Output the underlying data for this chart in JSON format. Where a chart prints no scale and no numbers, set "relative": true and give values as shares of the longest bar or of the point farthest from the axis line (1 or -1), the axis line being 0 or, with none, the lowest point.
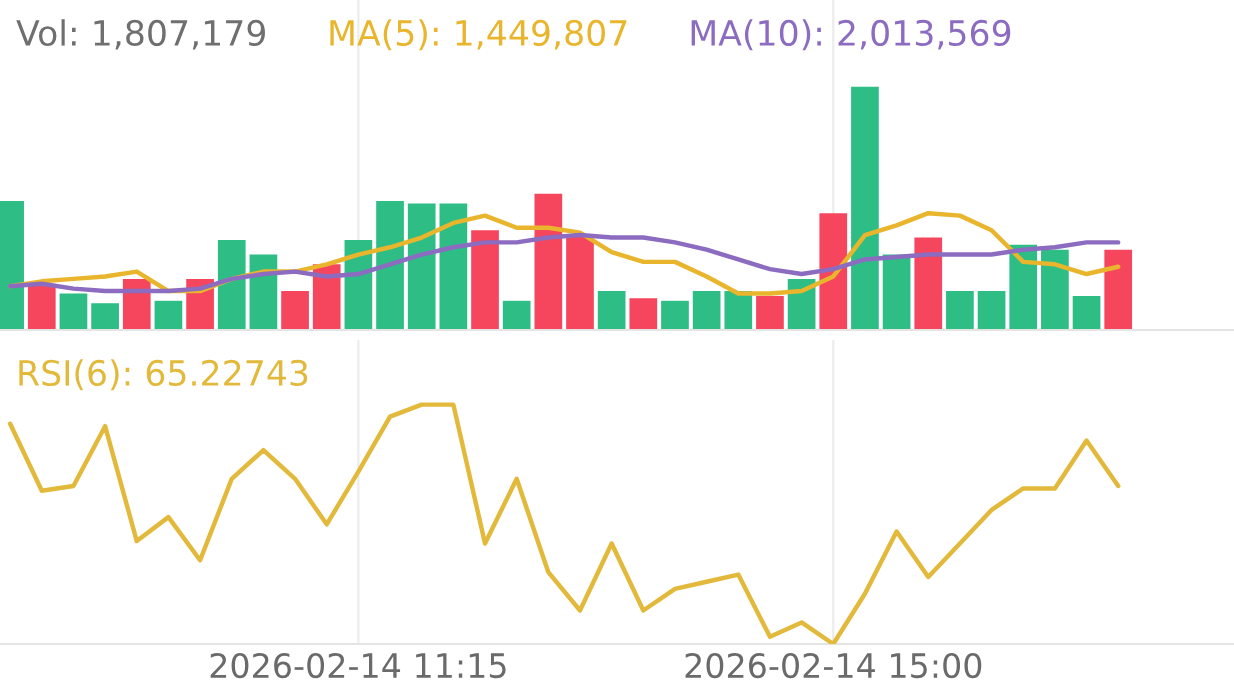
{
  "chart_data": [
    {
      "type": "bar",
      "title": "Vol: 1,807,179",
      "relative": true,
      "grid": "x",
      "legend": false,
      "tick_labels": false,
      "categories": [
        null,
        null,
        null,
        null,
        null,
        null,
        null,
        null,
        null,
        null,
        null,
        "2026-02-14 11:15",
        null,
        null,
        null,
        null,
        null,
        null,
        null,
        null,
        null,
        null,
        null,
        null,
        null,
        null,
        "2026-02-14 15:00",
        null,
        null,
        null,
        null,
        null,
        null,
        null,
        null,
        null
      ],
      "series": [
        {
          "type": "bar",
          "values": [
            0.53,
            0.19,
            0.15,
            0.11,
            0.21,
            0.12,
            0.21,
            0.37,
            0.31,
            0.16,
            0.27,
            0.37,
            0.53,
            0.52,
            0.52,
            0.41,
            0.12,
            0.56,
            0.39,
            0.16,
            0.13,
            0.12,
            0.16,
            0.16,
            0.14,
            0.21,
            0.48,
            1,
            0.31,
            0.38,
            0.16,
            0.16,
            0.35,
            0.33,
            0.14,
            0.33
          ],
          "colors": [
            "#2ebd85",
            "#f6465d",
            "#2ebd85",
            "#2ebd85",
            "#f6465d",
            "#2ebd85",
            "#f6465d",
            "#2ebd85",
            "#2ebd85",
            "#f6465d",
            "#f6465d",
            "#2ebd85",
            "#2ebd85",
            "#2ebd85",
            "#2ebd85",
            "#f6465d",
            "#2ebd85",
            "#f6465d",
            "#f6465d",
            "#2ebd85",
            "#f6465d",
            "#2ebd85",
            "#2ebd85",
            "#2ebd85",
            "#f6465d",
            "#2ebd85",
            "#f6465d",
            "#2ebd85",
            "#2ebd85",
            "#f6465d",
            "#2ebd85",
            "#2ebd85",
            "#2ebd85",
            "#2ebd85",
            "#2ebd85",
            "#f6465d"
          ]
        },
        {
          "type": "line",
          "name": "MA(5): 1,449,807",
          "color": "#e8b52c",
          "values": [
            0.18,
            0.2,
            0.21,
            0.22,
            0.24,
            0.16,
            0.16,
            0.21,
            0.24,
            0.24,
            0.27,
            0.31,
            0.34,
            0.38,
            0.44,
            0.47,
            0.42,
            0.42,
            0.4,
            0.32,
            0.28,
            0.28,
            0.22,
            0.15,
            0.15,
            0.16,
            0.22,
            0.39,
            0.43,
            0.48,
            0.47,
            0.41,
            0.28,
            0.27,
            0.23,
            0.26
          ]
        },
        {
          "type": "line",
          "name": "MA(10): 2,013,569",
          "color": "#8c6cc0",
          "values": [
            0.18,
            0.19,
            0.17,
            0.16,
            0.16,
            0.16,
            0.17,
            0.21,
            0.23,
            0.24,
            0.22,
            0.23,
            0.27,
            0.31,
            0.34,
            0.36,
            0.36,
            0.38,
            0.39,
            0.38,
            0.38,
            0.36,
            0.33,
            0.29,
            0.25,
            0.23,
            0.25,
            0.29,
            0.3,
            0.31,
            0.31,
            0.31,
            0.33,
            0.34,
            0.36,
            0.36
          ]
        }
      ]
    },
    {
      "type": "line",
      "relative": true,
      "grid": "x",
      "legend": false,
      "tick_labels": "x",
      "categories": [
        null,
        null,
        null,
        null,
        null,
        null,
        null,
        null,
        null,
        null,
        null,
        "2026-02-14 11:15",
        null,
        null,
        null,
        null,
        null,
        null,
        null,
        null,
        null,
        null,
        null,
        null,
        null,
        null,
        "2026-02-14 15:00",
        null,
        null,
        null,
        null,
        null,
        null,
        null,
        null,
        null
      ],
      "series": [
        {
          "name": "RSI(6): 65.22743",
          "color": "#e2b93b",
          "values": [
            0.92,
            0.64,
            0.66,
            0.91,
            0.43,
            0.53,
            0.35,
            0.69,
            0.81,
            0.69,
            0.5,
            0.72,
            0.95,
            1,
            1,
            0.42,
            0.69,
            0.3,
            0.14,
            0.42,
            0.14,
            0.23,
            0.26,
            0.29,
            0.03,
            0.09,
            0,
            0.21,
            0.47,
            0.28,
            0.42,
            0.56,
            0.65,
            0.65,
            0.85,
            0.66
          ]
        }
      ]
    }
  ]
}
